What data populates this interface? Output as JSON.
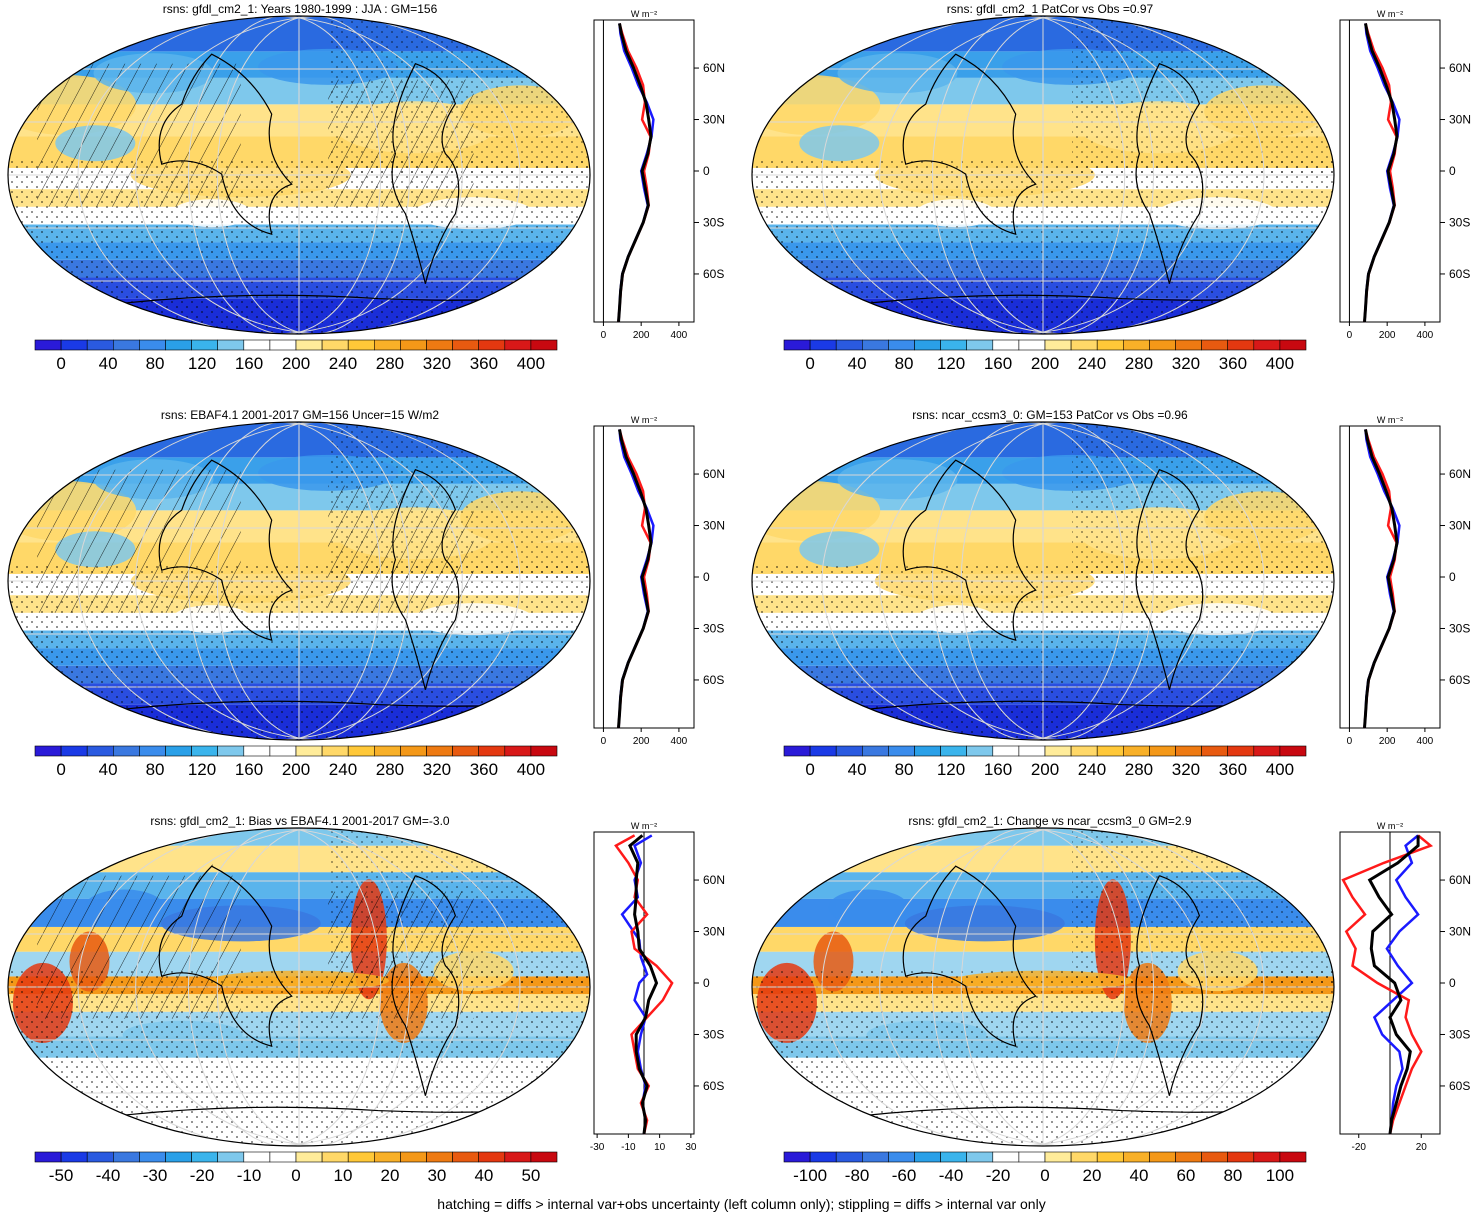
{
  "colors": {
    "abs_scale": [
      "#2a1ad8",
      "#1a3ae6",
      "#2a5ae0",
      "#3a78e0",
      "#3a8cec",
      "#2aa0e8",
      "#3ab4ec",
      "#7ec8ec",
      "#ffffff",
      "#ffffff",
      "#ffec9a",
      "#ffd868",
      "#ffc838",
      "#f8b028",
      "#f49818",
      "#ee7a12",
      "#e85a10",
      "#e43810",
      "#d81818",
      "#c80810"
    ],
    "diff_scale": [
      "#2a1ad8",
      "#1a3ae6",
      "#2a5ae0",
      "#3a78e0",
      "#3a8cec",
      "#2aa0e8",
      "#3ab4ec",
      "#7ec8ec",
      "#ffffff",
      "#ffffff",
      "#ffec9a",
      "#ffd868",
      "#ffc838",
      "#f8b028",
      "#f49818",
      "#ee7a12",
      "#e85a10",
      "#e43810",
      "#d81818",
      "#c80810"
    ],
    "line_blue": "#1a1aff",
    "line_red": "#ff1a1a",
    "line_black": "#000000"
  },
  "panels": [
    {
      "id": "p1",
      "title": "rsns: gfdl_cm2_1: Years 1980-1999 : JJA : GM=156",
      "map_style": "abs",
      "hatching": true,
      "cbar_labels": [
        "0",
        "40",
        "80",
        "120",
        "160",
        "200",
        "240",
        "280",
        "320",
        "360",
        "400"
      ],
      "profile": {
        "units": "W m⁻²",
        "lat_labels": [
          "60N",
          "30N",
          "0",
          "30S",
          "60S"
        ],
        "x_ticks": [
          "0",
          "200",
          "400"
        ],
        "xlim": [
          -50,
          480
        ]
      }
    },
    {
      "id": "p2",
      "title": "rsns: gfdl_cm2_1 PatCor vs Obs =0.97",
      "map_style": "abs",
      "hatching": false,
      "cbar_labels": [
        "0",
        "40",
        "80",
        "120",
        "160",
        "200",
        "240",
        "280",
        "320",
        "360",
        "400"
      ],
      "profile": {
        "units": "W m⁻²",
        "lat_labels": [
          "60N",
          "30N",
          "0",
          "30S",
          "60S"
        ],
        "x_ticks": [
          "0",
          "200",
          "400"
        ],
        "xlim": [
          -50,
          480
        ]
      }
    },
    {
      "id": "p3",
      "title": "rsns: EBAF4.1 2001-2017 GM=156 Uncer=15 W/m2",
      "map_style": "abs",
      "hatching": true,
      "cbar_labels": [
        "0",
        "40",
        "80",
        "120",
        "160",
        "200",
        "240",
        "280",
        "320",
        "360",
        "400"
      ],
      "profile": {
        "units": "W m⁻²",
        "lat_labels": [
          "60N",
          "30N",
          "0",
          "30S",
          "60S"
        ],
        "x_ticks": [
          "0",
          "200",
          "400"
        ],
        "xlim": [
          -50,
          480
        ]
      }
    },
    {
      "id": "p4",
      "title": "rsns: ncar_ccsm3_0: GM=153 PatCor vs Obs =0.96",
      "map_style": "abs",
      "hatching": false,
      "cbar_labels": [
        "0",
        "40",
        "80",
        "120",
        "160",
        "200",
        "240",
        "280",
        "320",
        "360",
        "400"
      ],
      "profile": {
        "units": "W m⁻²",
        "lat_labels": [
          "60N",
          "30N",
          "0",
          "30S",
          "60S"
        ],
        "x_ticks": [
          "0",
          "200",
          "400"
        ],
        "xlim": [
          -50,
          480
        ]
      }
    },
    {
      "id": "p5",
      "title": "rsns: gfdl_cm2_1: Bias vs EBAF4.1 2001-2017 GM=-3.0",
      "map_style": "diff",
      "hatching": true,
      "cbar_labels": [
        "-50",
        "-40",
        "-30",
        "-20",
        "-10",
        "0",
        "10",
        "20",
        "30",
        "40",
        "50"
      ],
      "profile": {
        "units": "W m⁻²",
        "lat_labels": [
          "60N",
          "30N",
          "0",
          "30S",
          "60S"
        ],
        "x_ticks": [
          "-30",
          "-10",
          "10",
          "30"
        ],
        "xlim": [
          -32,
          32
        ]
      }
    },
    {
      "id": "p6",
      "title": "rsns: gfdl_cm2_1: Change vs ncar_ccsm3_0 GM=2.9",
      "map_style": "diff",
      "hatching": false,
      "cbar_labels": [
        "-100",
        "-80",
        "-60",
        "-40",
        "-20",
        "0",
        "20",
        "40",
        "60",
        "80",
        "100"
      ],
      "profile": {
        "units": "W m⁻²",
        "lat_labels": [
          "60N",
          "30N",
          "0",
          "30S",
          "60S"
        ],
        "x_ticks": [
          "-20",
          "20"
        ],
        "xlim": [
          -32,
          32
        ]
      }
    }
  ],
  "profiles": {
    "abs_blue": [
      [
        80,
        -88
      ],
      [
        85,
        -80
      ],
      [
        90,
        -70
      ],
      [
        100,
        -60
      ],
      [
        130,
        -50
      ],
      [
        170,
        -40
      ],
      [
        210,
        -30
      ],
      [
        235,
        -20
      ],
      [
        215,
        -10
      ],
      [
        200,
        0
      ],
      [
        230,
        10
      ],
      [
        255,
        20
      ],
      [
        265,
        30
      ],
      [
        230,
        40
      ],
      [
        185,
        50
      ],
      [
        150,
        60
      ],
      [
        110,
        70
      ],
      [
        90,
        80
      ],
      [
        85,
        86
      ]
    ],
    "abs_red": [
      [
        80,
        -88
      ],
      [
        85,
        -80
      ],
      [
        92,
        -70
      ],
      [
        102,
        -60
      ],
      [
        132,
        -50
      ],
      [
        172,
        -40
      ],
      [
        212,
        -30
      ],
      [
        240,
        -20
      ],
      [
        230,
        -10
      ],
      [
        215,
        0
      ],
      [
        240,
        10
      ],
      [
        250,
        20
      ],
      [
        205,
        30
      ],
      [
        220,
        40
      ],
      [
        210,
        50
      ],
      [
        175,
        60
      ],
      [
        130,
        70
      ],
      [
        100,
        80
      ],
      [
        85,
        86
      ]
    ],
    "abs_black": [
      [
        80,
        -88
      ],
      [
        85,
        -80
      ],
      [
        91,
        -70
      ],
      [
        101,
        -60
      ],
      [
        131,
        -50
      ],
      [
        171,
        -40
      ],
      [
        211,
        -30
      ],
      [
        238,
        -20
      ],
      [
        222,
        -10
      ],
      [
        205,
        0
      ],
      [
        235,
        10
      ],
      [
        252,
        20
      ],
      [
        240,
        30
      ],
      [
        225,
        40
      ],
      [
        195,
        50
      ],
      [
        160,
        60
      ],
      [
        120,
        70
      ],
      [
        95,
        80
      ],
      [
        85,
        86
      ]
    ],
    "bias_blue": [
      [
        0,
        -88
      ],
      [
        1,
        -80
      ],
      [
        -1,
        -70
      ],
      [
        1,
        -60
      ],
      [
        -2,
        -50
      ],
      [
        -4,
        -40
      ],
      [
        -2,
        -30
      ],
      [
        1,
        -20
      ],
      [
        -6,
        -10
      ],
      [
        -3,
        0
      ],
      [
        2,
        5
      ],
      [
        -2,
        15
      ],
      [
        -3,
        25
      ],
      [
        -14,
        40
      ],
      [
        -4,
        50
      ],
      [
        -6,
        60
      ],
      [
        -2,
        70
      ],
      [
        -6,
        80
      ],
      [
        5,
        86
      ]
    ],
    "bias_red": [
      [
        0,
        -88
      ],
      [
        2,
        -80
      ],
      [
        -2,
        -70
      ],
      [
        3,
        -60
      ],
      [
        -4,
        -50
      ],
      [
        -6,
        -40
      ],
      [
        -8,
        -30
      ],
      [
        2,
        -20
      ],
      [
        12,
        -10
      ],
      [
        18,
        0
      ],
      [
        8,
        10
      ],
      [
        -6,
        20
      ],
      [
        -8,
        30
      ],
      [
        2,
        40
      ],
      [
        -6,
        50
      ],
      [
        -4,
        60
      ],
      [
        -10,
        70
      ],
      [
        -18,
        80
      ],
      [
        -6,
        86
      ]
    ],
    "bias_black": [
      [
        0,
        -88
      ],
      [
        1,
        -80
      ],
      [
        -1,
        -70
      ],
      [
        2,
        -60
      ],
      [
        -3,
        -50
      ],
      [
        -5,
        -40
      ],
      [
        -5,
        -30
      ],
      [
        1,
        -20
      ],
      [
        3,
        -10
      ],
      [
        8,
        0
      ],
      [
        4,
        10
      ],
      [
        -3,
        20
      ],
      [
        -4,
        30
      ],
      [
        -6,
        40
      ],
      [
        -5,
        50
      ],
      [
        -5,
        60
      ],
      [
        -4,
        70
      ],
      [
        -9,
        80
      ],
      [
        -1,
        86
      ]
    ],
    "chg_blue": [
      [
        0,
        -88
      ],
      [
        1,
        -80
      ],
      [
        2,
        -70
      ],
      [
        4,
        -60
      ],
      [
        8,
        -50
      ],
      [
        6,
        -40
      ],
      [
        -5,
        -30
      ],
      [
        -10,
        -20
      ],
      [
        2,
        -10
      ],
      [
        14,
        0
      ],
      [
        5,
        10
      ],
      [
        -2,
        20
      ],
      [
        6,
        30
      ],
      [
        18,
        40
      ],
      [
        10,
        50
      ],
      [
        4,
        60
      ],
      [
        14,
        70
      ],
      [
        10,
        80
      ],
      [
        18,
        86
      ]
    ],
    "chg_red": [
      [
        0,
        -88
      ],
      [
        2,
        -80
      ],
      [
        6,
        -70
      ],
      [
        10,
        -60
      ],
      [
        14,
        -50
      ],
      [
        20,
        -40
      ],
      [
        14,
        -30
      ],
      [
        10,
        -20
      ],
      [
        12,
        -10
      ],
      [
        -8,
        0
      ],
      [
        -24,
        10
      ],
      [
        -22,
        20
      ],
      [
        -28,
        30
      ],
      [
        -16,
        40
      ],
      [
        -24,
        50
      ],
      [
        -30,
        60
      ],
      [
        -4,
        70
      ],
      [
        26,
        80
      ],
      [
        18,
        86
      ]
    ],
    "chg_black": [
      [
        0,
        -88
      ],
      [
        1,
        -80
      ],
      [
        4,
        -70
      ],
      [
        7,
        -60
      ],
      [
        11,
        -50
      ],
      [
        13,
        -40
      ],
      [
        4,
        -30
      ],
      [
        0,
        -20
      ],
      [
        7,
        -10
      ],
      [
        3,
        0
      ],
      [
        -10,
        10
      ],
      [
        -12,
        20
      ],
      [
        -11,
        30
      ],
      [
        1,
        40
      ],
      [
        -7,
        50
      ],
      [
        -13,
        60
      ],
      [
        5,
        70
      ],
      [
        18,
        80
      ],
      [
        18,
        86
      ]
    ]
  },
  "footer": "hatching = diffs > internal var+obs uncertainty (left column only); stippling = diffs > internal var only"
}
